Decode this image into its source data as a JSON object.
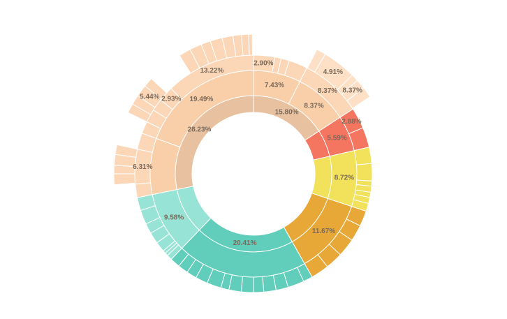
{
  "chart_data": {
    "type": "sunburst",
    "title": "",
    "rings": [
      {
        "name": "inner",
        "segments": [
          {
            "start_deg": 0,
            "end_deg": 56.9,
            "color": "#e8c1a0",
            "label": "15.80%"
          },
          {
            "start_deg": 56.9,
            "end_deg": 77.0,
            "color": "#f47560",
            "label": ""
          },
          {
            "start_deg": 77.0,
            "end_deg": 108.4,
            "color": "#f1e15b",
            "label": ""
          },
          {
            "start_deg": 108.4,
            "end_deg": 150.4,
            "color": "#e8a838",
            "label": ""
          },
          {
            "start_deg": 150.4,
            "end_deg": 223.9,
            "color": "#61cdbb",
            "label": "20.41%"
          },
          {
            "start_deg": 223.9,
            "end_deg": 258.4,
            "color": "#97e3d5",
            "label": ""
          },
          {
            "start_deg": 258.4,
            "end_deg": 360,
            "color": "#e8c1a0",
            "label": "28.23%"
          }
        ]
      },
      {
        "name": "middle",
        "segments": [
          {
            "start_deg": 0,
            "end_deg": 26.7,
            "color": "#f9cfaa",
            "label": "7.43%"
          },
          {
            "start_deg": 26.7,
            "end_deg": 56.9,
            "color": "#f9cfaa",
            "label": "8.37%"
          },
          {
            "start_deg": 56.9,
            "end_deg": 77.0,
            "color": "#f47560",
            "label": "5.59%"
          },
          {
            "start_deg": 77.0,
            "end_deg": 108.4,
            "color": "#f1e15b",
            "label": "8.72%"
          },
          {
            "start_deg": 108.4,
            "end_deg": 150.4,
            "color": "#e8a838",
            "label": "11.67%"
          },
          {
            "start_deg": 150.4,
            "end_deg": 223.9,
            "color": "#61cdbb",
            "label": ""
          },
          {
            "start_deg": 223.9,
            "end_deg": 258.4,
            "color": "#97e3d5",
            "label": "9.58%"
          },
          {
            "start_deg": 258.4,
            "end_deg": 290.0,
            "color": "#f9cfaa",
            "label": ""
          },
          {
            "start_deg": 290.0,
            "end_deg": 360,
            "color": "#f9cfaa",
            "label": "19.49%"
          }
        ]
      },
      {
        "name": "outer",
        "segments": [
          {
            "start_deg": 0,
            "end_deg": 10.4,
            "color": "#fbd7b8",
            "label": "2.90%"
          },
          {
            "start_deg": 10.4,
            "end_deg": 13.5,
            "color": "#fbd7b8",
            "label": ""
          },
          {
            "start_deg": 13.5,
            "end_deg": 17.5,
            "color": "#fbd7b8",
            "label": ""
          },
          {
            "start_deg": 17.5,
            "end_deg": 26.7,
            "color": "#fbd7b8",
            "label": ""
          },
          {
            "start_deg": 26.7,
            "end_deg": 56.9,
            "color": "#fbd7b8",
            "label": "8.37%"
          },
          {
            "start_deg": 56.9,
            "end_deg": 67.2,
            "color": "#f47560",
            "label": "2.88%"
          },
          {
            "start_deg": 67.2,
            "end_deg": 77.0,
            "color": "#f47560",
            "label": ""
          },
          {
            "start_deg": 77.0,
            "end_deg": 85.0,
            "color": "#f1e15b",
            "label": ""
          },
          {
            "start_deg": 85.0,
            "end_deg": 93.5,
            "color": "#f1e15b",
            "label": ""
          },
          {
            "start_deg": 93.5,
            "end_deg": 96.0,
            "color": "#f1e15b",
            "label": ""
          },
          {
            "start_deg": 96.0,
            "end_deg": 99.0,
            "color": "#f1e15b",
            "label": ""
          },
          {
            "start_deg": 99.0,
            "end_deg": 101.5,
            "color": "#f1e15b",
            "label": ""
          },
          {
            "start_deg": 101.5,
            "end_deg": 104.5,
            "color": "#f1e15b",
            "label": ""
          },
          {
            "start_deg": 104.5,
            "end_deg": 108.4,
            "color": "#f1e15b",
            "label": ""
          },
          {
            "start_deg": 108.4,
            "end_deg": 116.0,
            "color": "#e8a838",
            "label": ""
          },
          {
            "start_deg": 116.0,
            "end_deg": 124.0,
            "color": "#e8a838",
            "label": ""
          },
          {
            "start_deg": 124.0,
            "end_deg": 133.0,
            "color": "#e8a838",
            "label": ""
          },
          {
            "start_deg": 133.0,
            "end_deg": 141.5,
            "color": "#e8a838",
            "label": ""
          },
          {
            "start_deg": 141.5,
            "end_deg": 150.4,
            "color": "#e8a838",
            "label": ""
          },
          {
            "start_deg": 150.4,
            "end_deg": 155.0,
            "color": "#61cdbb",
            "label": ""
          },
          {
            "start_deg": 155.0,
            "end_deg": 163.0,
            "color": "#61cdbb",
            "label": ""
          },
          {
            "start_deg": 163.0,
            "end_deg": 169.0,
            "color": "#61cdbb",
            "label": ""
          },
          {
            "start_deg": 169.0,
            "end_deg": 175.0,
            "color": "#61cdbb",
            "label": ""
          },
          {
            "start_deg": 175.0,
            "end_deg": 180.0,
            "color": "#61cdbb",
            "label": ""
          },
          {
            "start_deg": 180.0,
            "end_deg": 186.0,
            "color": "#61cdbb",
            "label": ""
          },
          {
            "start_deg": 186.0,
            "end_deg": 192.0,
            "color": "#61cdbb",
            "label": ""
          },
          {
            "start_deg": 192.0,
            "end_deg": 196.0,
            "color": "#61cdbb",
            "label": ""
          },
          {
            "start_deg": 196.0,
            "end_deg": 203.0,
            "color": "#61cdbb",
            "label": ""
          },
          {
            "start_deg": 203.0,
            "end_deg": 209.0,
            "color": "#61cdbb",
            "label": ""
          },
          {
            "start_deg": 209.0,
            "end_deg": 214.0,
            "color": "#61cdbb",
            "label": ""
          },
          {
            "start_deg": 214.0,
            "end_deg": 219.0,
            "color": "#61cdbb",
            "label": ""
          },
          {
            "start_deg": 219.0,
            "end_deg": 223.9,
            "color": "#61cdbb",
            "label": ""
          },
          {
            "start_deg": 223.9,
            "end_deg": 226.5,
            "color": "#97e3d5",
            "label": ""
          },
          {
            "start_deg": 226.5,
            "end_deg": 228.0,
            "color": "#97e3d5",
            "label": ""
          },
          {
            "start_deg": 228.0,
            "end_deg": 229.5,
            "color": "#97e3d5",
            "label": ""
          },
          {
            "start_deg": 229.5,
            "end_deg": 234.5,
            "color": "#97e3d5",
            "label": ""
          },
          {
            "start_deg": 234.5,
            "end_deg": 240.0,
            "color": "#97e3d5",
            "label": ""
          },
          {
            "start_deg": 240.0,
            "end_deg": 245.0,
            "color": "#97e3d5",
            "label": ""
          },
          {
            "start_deg": 245.0,
            "end_deg": 252.0,
            "color": "#97e3d5",
            "label": ""
          },
          {
            "start_deg": 252.0,
            "end_deg": 258.4,
            "color": "#97e3d5",
            "label": ""
          },
          {
            "start_deg": 258.4,
            "end_deg": 265.0,
            "color": "#fbd7b8",
            "label": ""
          },
          {
            "start_deg": 265.0,
            "end_deg": 282.0,
            "color": "#fbd7b8",
            "label": "6.31%"
          },
          {
            "start_deg": 282.0,
            "end_deg": 290.0,
            "color": "#fbd7b8",
            "label": ""
          },
          {
            "start_deg": 290.0,
            "end_deg": 296.0,
            "color": "#fbd7b8",
            "label": ""
          },
          {
            "start_deg": 296.0,
            "end_deg": 302.5,
            "color": "#fbd7b8",
            "label": ""
          },
          {
            "start_deg": 302.5,
            "end_deg": 308.5,
            "color": "#fbd7b8",
            "label": ""
          },
          {
            "start_deg": 308.5,
            "end_deg": 316.0,
            "color": "#fbd7b8",
            "label": "2.93%"
          },
          {
            "start_deg": 316.0,
            "end_deg": 360,
            "color": "#fbd7b8",
            "label": "13.22%"
          }
        ]
      },
      {
        "name": "fourth",
        "segments": [
          {
            "start_deg": 27.0,
            "end_deg": 31.0,
            "color": "#fde0c6",
            "label": ""
          },
          {
            "start_deg": 31.0,
            "end_deg": 45.0,
            "color": "#fde0c6",
            "label": "4.91%"
          },
          {
            "start_deg": 45.0,
            "end_deg": 48.0,
            "color": "#fde0c6",
            "label": ""
          },
          {
            "start_deg": 48.0,
            "end_deg": 52.0,
            "color": "#fde0c6",
            "label": "8.37%"
          },
          {
            "start_deg": 52.0,
            "end_deg": 56.5,
            "color": "#fde0c6",
            "label": ""
          },
          {
            "start_deg": 265.5,
            "end_deg": 270.0,
            "color": "#fbd7b8",
            "label": ""
          },
          {
            "start_deg": 270.0,
            "end_deg": 273.5,
            "color": "#fbd7b8",
            "label": ""
          },
          {
            "start_deg": 273.5,
            "end_deg": 278.0,
            "color": "#fbd7b8",
            "label": ""
          },
          {
            "start_deg": 278.0,
            "end_deg": 282.0,
            "color": "#fbd7b8",
            "label": ""
          },
          {
            "start_deg": 296.0,
            "end_deg": 300.0,
            "color": "#fbd7b8",
            "label": ""
          },
          {
            "start_deg": 300.0,
            "end_deg": 304.0,
            "color": "#fbd7b8",
            "label": ""
          },
          {
            "start_deg": 304.0,
            "end_deg": 309.0,
            "color": "#fbd7b8",
            "label": "5.44%"
          },
          {
            "start_deg": 309.0,
            "end_deg": 313.0,
            "color": "#fbd7b8",
            "label": ""
          },
          {
            "start_deg": 328.0,
            "end_deg": 333.0,
            "color": "#fbd7b8",
            "label": ""
          },
          {
            "start_deg": 333.0,
            "end_deg": 338.0,
            "color": "#fbd7b8",
            "label": ""
          },
          {
            "start_deg": 338.0,
            "end_deg": 342.0,
            "color": "#fbd7b8",
            "label": ""
          },
          {
            "start_deg": 342.0,
            "end_deg": 347.0,
            "color": "#fbd7b8",
            "label": ""
          },
          {
            "start_deg": 347.0,
            "end_deg": 351.5,
            "color": "#fbd7b8",
            "label": ""
          },
          {
            "start_deg": 351.5,
            "end_deg": 355.0,
            "color": "#fbd7b8",
            "label": ""
          },
          {
            "start_deg": 355.0,
            "end_deg": 358.0,
            "color": "#fbd7b8",
            "label": ""
          },
          {
            "start_deg": 358.0,
            "end_deg": 359.5,
            "color": "#fbd7b8",
            "label": ""
          }
        ]
      }
    ]
  }
}
